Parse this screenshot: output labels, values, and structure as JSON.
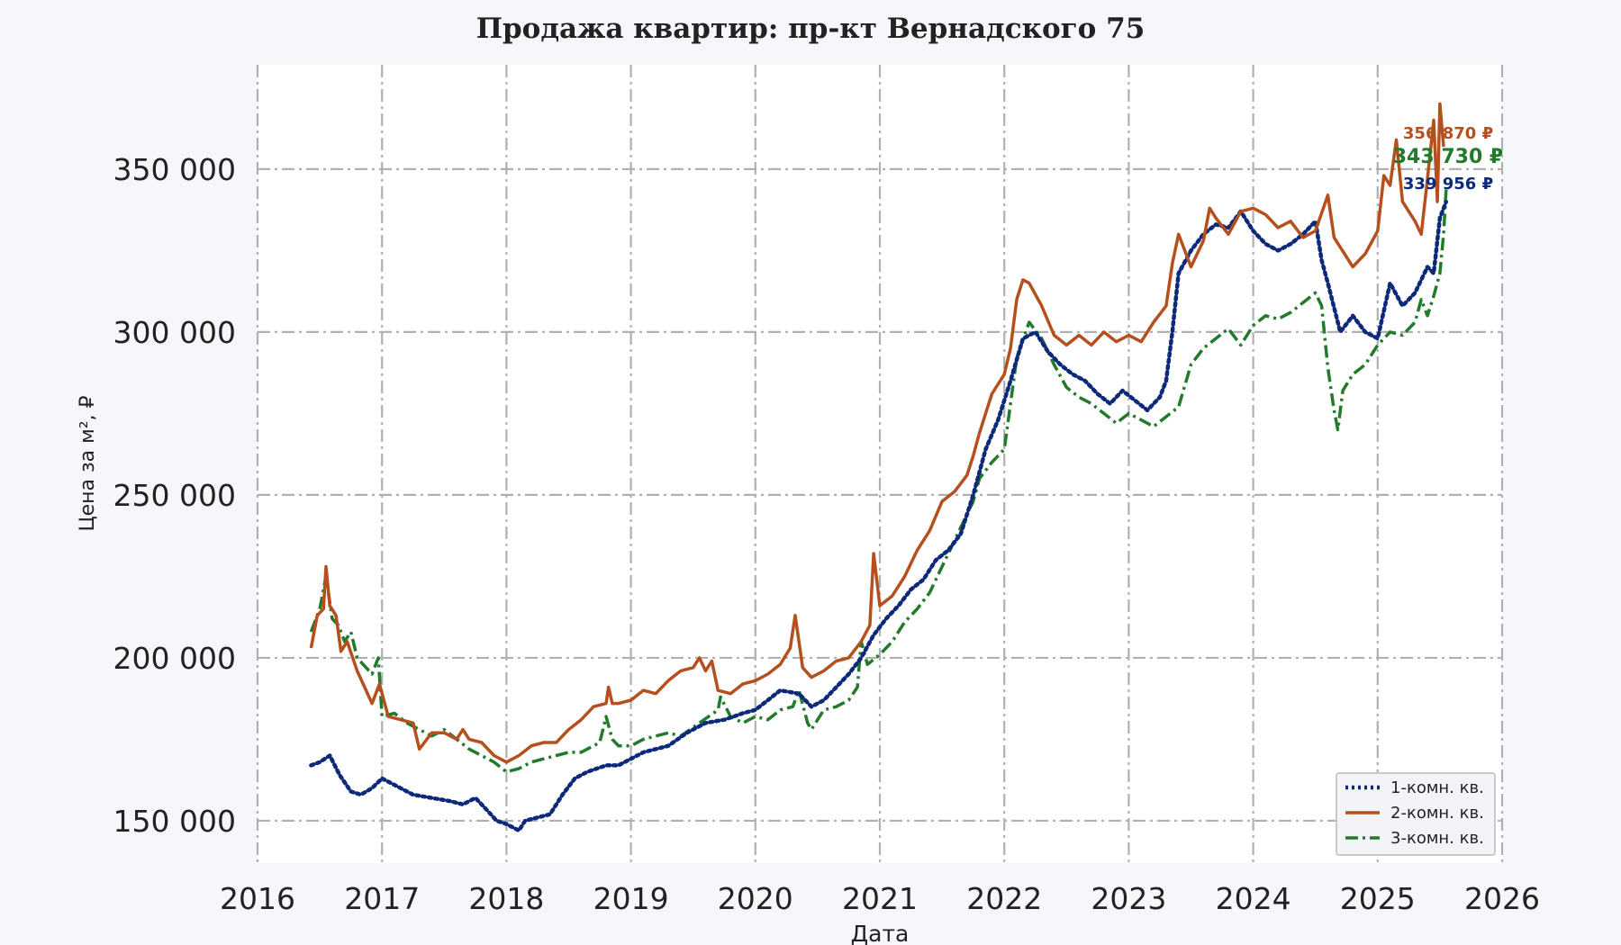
{
  "chart_data": {
    "type": "line",
    "title": "Продажа квартир: пр-кт Вернадского 75",
    "xlabel": "Дата",
    "ylabel": "Цена за м², ₽",
    "xlim": [
      2016.0,
      2026.0
    ],
    "ylim": [
      137000,
      382000
    ],
    "x_ticks": [
      2016,
      2017,
      2018,
      2019,
      2020,
      2021,
      2022,
      2023,
      2024,
      2025,
      2026
    ],
    "x_tick_labels": [
      "2016",
      "2017",
      "2018",
      "2019",
      "2020",
      "2021",
      "2022",
      "2023",
      "2024",
      "2025",
      "2026"
    ],
    "y_ticks": [
      150000,
      200000,
      250000,
      300000,
      350000
    ],
    "y_tick_labels": [
      "150 000",
      "200 000",
      "250 000",
      "300 000",
      "350 000"
    ],
    "grid": true,
    "legend_position": "bottom-right",
    "series": [
      {
        "name": "1-комн. кв.",
        "color": "#0d2a7a",
        "style": "dotted",
        "x": [
          2016.43,
          2016.5,
          2016.58,
          2016.66,
          2016.75,
          2016.83,
          2016.92,
          2017.0,
          2017.1,
          2017.25,
          2017.4,
          2017.55,
          2017.65,
          2017.75,
          2017.85,
          2017.92,
          2018.0,
          2018.1,
          2018.15,
          2018.25,
          2018.35,
          2018.45,
          2018.55,
          2018.65,
          2018.8,
          2018.9,
          2019.0,
          2019.1,
          2019.2,
          2019.3,
          2019.45,
          2019.6,
          2019.75,
          2019.9,
          2020.0,
          2020.1,
          2020.2,
          2020.35,
          2020.45,
          2020.55,
          2020.65,
          2020.75,
          2020.85,
          2020.95,
          2021.05,
          2021.15,
          2021.25,
          2021.35,
          2021.45,
          2021.55,
          2021.65,
          2021.75,
          2021.85,
          2021.95,
          2022.05,
          2022.15,
          2022.25,
          2022.35,
          2022.45,
          2022.55,
          2022.65,
          2022.75,
          2022.85,
          2022.95,
          2023.05,
          2023.15,
          2023.25,
          2023.3,
          2023.35,
          2023.4,
          2023.5,
          2023.6,
          2023.7,
          2023.8,
          2023.9,
          2024.0,
          2024.1,
          2024.2,
          2024.3,
          2024.4,
          2024.5,
          2024.55,
          2024.6,
          2024.7,
          2024.8,
          2024.9,
          2025.0,
          2025.1,
          2025.2,
          2025.3,
          2025.4,
          2025.45,
          2025.5,
          2025.55
        ],
        "values": [
          167000,
          168000,
          170000,
          164000,
          159000,
          158000,
          160000,
          163000,
          161000,
          158000,
          157000,
          156000,
          155000,
          157000,
          153000,
          150000,
          149000,
          147000,
          150000,
          151000,
          152000,
          158000,
          163000,
          165000,
          167000,
          167000,
          169000,
          171000,
          172000,
          173000,
          177000,
          180000,
          181000,
          183000,
          184000,
          187000,
          190000,
          189000,
          185000,
          187000,
          191000,
          195000,
          200000,
          207000,
          212000,
          216000,
          221000,
          224000,
          230000,
          233000,
          238000,
          250000,
          264000,
          273000,
          285000,
          298000,
          300000,
          294000,
          290000,
          287000,
          285000,
          281000,
          278000,
          282000,
          279000,
          276000,
          280000,
          285000,
          300000,
          318000,
          325000,
          330000,
          333000,
          332000,
          337000,
          331000,
          327000,
          325000,
          327000,
          330000,
          334000,
          322000,
          315000,
          300000,
          305000,
          300000,
          298000,
          315000,
          308000,
          312000,
          320000,
          318000,
          335000,
          339956
        ]
      },
      {
        "name": "2-комн. кв.",
        "color": "#b5501e",
        "style": "solid",
        "x": [
          2016.43,
          2016.48,
          2016.53,
          2016.55,
          2016.58,
          2016.63,
          2016.67,
          2016.72,
          2016.8,
          2016.92,
          2016.98,
          2017.05,
          2017.15,
          2017.25,
          2017.3,
          2017.4,
          2017.5,
          2017.6,
          2017.65,
          2017.7,
          2017.8,
          2017.9,
          2018.0,
          2018.1,
          2018.2,
          2018.3,
          2018.4,
          2018.5,
          2018.6,
          2018.7,
          2018.8,
          2018.82,
          2018.85,
          2018.9,
          2019.0,
          2019.1,
          2019.2,
          2019.3,
          2019.4,
          2019.5,
          2019.55,
          2019.6,
          2019.65,
          2019.7,
          2019.8,
          2019.9,
          2020.0,
          2020.1,
          2020.2,
          2020.28,
          2020.32,
          2020.38,
          2020.45,
          2020.55,
          2020.65,
          2020.75,
          2020.85,
          2020.92,
          2020.95,
          2021.0,
          2021.1,
          2021.2,
          2021.3,
          2021.4,
          2021.5,
          2021.6,
          2021.7,
          2021.75,
          2021.8,
          2021.9,
          2022.0,
          2022.05,
          2022.1,
          2022.15,
          2022.2,
          2022.3,
          2022.4,
          2022.5,
          2022.6,
          2022.7,
          2022.8,
          2022.9,
          2023.0,
          2023.1,
          2023.2,
          2023.3,
          2023.35,
          2023.4,
          2023.5,
          2023.6,
          2023.65,
          2023.7,
          2023.8,
          2023.9,
          2024.0,
          2024.1,
          2024.2,
          2024.3,
          2024.4,
          2024.5,
          2024.6,
          2024.65,
          2024.7,
          2024.8,
          2024.9,
          2025.0,
          2025.05,
          2025.1,
          2025.15,
          2025.2,
          2025.3,
          2025.35,
          2025.4,
          2025.45,
          2025.48,
          2025.5,
          2025.53
        ],
        "values": [
          203000,
          213000,
          215000,
          228000,
          216000,
          213000,
          202000,
          205000,
          196000,
          186000,
          192000,
          182000,
          181000,
          180000,
          172000,
          177000,
          177000,
          175000,
          178000,
          175000,
          174000,
          170000,
          168000,
          170000,
          173000,
          174000,
          174000,
          178000,
          181000,
          185000,
          186000,
          191000,
          186000,
          186000,
          187000,
          190000,
          189000,
          193000,
          196000,
          197000,
          200000,
          196000,
          199000,
          190000,
          189000,
          192000,
          193000,
          195000,
          198000,
          203000,
          213000,
          197000,
          194000,
          196000,
          199000,
          200000,
          205000,
          210000,
          232000,
          216000,
          219000,
          225000,
          233000,
          239000,
          248000,
          251000,
          256000,
          262000,
          269000,
          281000,
          287000,
          295000,
          310000,
          316000,
          315000,
          308000,
          299000,
          296000,
          299000,
          296000,
          300000,
          297000,
          299000,
          297000,
          303000,
          308000,
          321000,
          330000,
          320000,
          328000,
          338000,
          335000,
          330000,
          337000,
          338000,
          336000,
          332000,
          334000,
          329000,
          331000,
          342000,
          329000,
          326000,
          320000,
          324000,
          331000,
          348000,
          345000,
          359000,
          340000,
          334000,
          330000,
          347000,
          365000,
          340000,
          370000,
          356870
        ]
      },
      {
        "name": "3-комн. кв.",
        "color": "#227a2b",
        "style": "dashdot",
        "x": [
          2016.43,
          2016.5,
          2016.55,
          2016.6,
          2016.65,
          2016.7,
          2016.75,
          2016.8,
          2016.92,
          2016.97,
          2017.0,
          2017.1,
          2017.2,
          2017.3,
          2017.4,
          2017.5,
          2017.6,
          2017.7,
          2017.8,
          2017.9,
          2018.0,
          2018.1,
          2018.2,
          2018.3,
          2018.4,
          2018.5,
          2018.6,
          2018.75,
          2018.8,
          2018.85,
          2018.9,
          2019.0,
          2019.1,
          2019.2,
          2019.3,
          2019.4,
          2019.55,
          2019.7,
          2019.72,
          2019.8,
          2019.9,
          2020.0,
          2020.1,
          2020.2,
          2020.3,
          2020.35,
          2020.42,
          2020.45,
          2020.55,
          2020.65,
          2020.75,
          2020.82,
          2020.85,
          2020.9,
          2021.0,
          2021.1,
          2021.2,
          2021.3,
          2021.4,
          2021.5,
          2021.6,
          2021.7,
          2021.75,
          2021.8,
          2021.9,
          2022.0,
          2022.05,
          2022.1,
          2022.2,
          2022.3,
          2022.4,
          2022.5,
          2022.6,
          2022.7,
          2022.8,
          2022.9,
          2023.0,
          2023.1,
          2023.2,
          2023.3,
          2023.4,
          2023.5,
          2023.6,
          2023.7,
          2023.8,
          2023.9,
          2024.0,
          2024.1,
          2024.2,
          2024.3,
          2024.4,
          2024.5,
          2024.55,
          2024.6,
          2024.65,
          2024.68,
          2024.72,
          2024.8,
          2024.9,
          2025.0,
          2025.1,
          2025.2,
          2025.3,
          2025.35,
          2025.4,
          2025.45,
          2025.5,
          2025.53,
          2025.55
        ],
        "values": [
          208000,
          215000,
          225000,
          212000,
          210000,
          205000,
          208000,
          200000,
          195000,
          200000,
          182000,
          183000,
          180000,
          178000,
          176000,
          178000,
          175000,
          172000,
          170000,
          168000,
          165000,
          166000,
          168000,
          169000,
          170000,
          171000,
          171000,
          174000,
          182000,
          175000,
          173000,
          173000,
          175000,
          176000,
          177000,
          176000,
          180000,
          184000,
          188000,
          182000,
          180000,
          182000,
          181000,
          184000,
          185000,
          190000,
          180000,
          178000,
          184000,
          185000,
          187000,
          191000,
          205000,
          198000,
          201000,
          205000,
          211000,
          215000,
          220000,
          228000,
          236000,
          244000,
          248000,
          255000,
          260000,
          264000,
          278000,
          292000,
          303000,
          298000,
          290000,
          283000,
          280000,
          278000,
          275000,
          272000,
          275000,
          273000,
          271000,
          274000,
          277000,
          290000,
          295000,
          298000,
          301000,
          296000,
          302000,
          305000,
          304000,
          306000,
          309000,
          312000,
          308000,
          289000,
          276000,
          270000,
          282000,
          287000,
          290000,
          296000,
          300000,
          299000,
          303000,
          310000,
          305000,
          311000,
          318000,
          330000,
          343730
        ]
      }
    ],
    "annotations": [
      {
        "text": "356 870 ₽",
        "color": "#b5501e",
        "series": 1
      },
      {
        "text": "343 730 ₽",
        "color": "#227a2b",
        "series": 2
      },
      {
        "text": "339 956 ₽",
        "color": "#0d2a7a",
        "series": 0
      }
    ]
  }
}
